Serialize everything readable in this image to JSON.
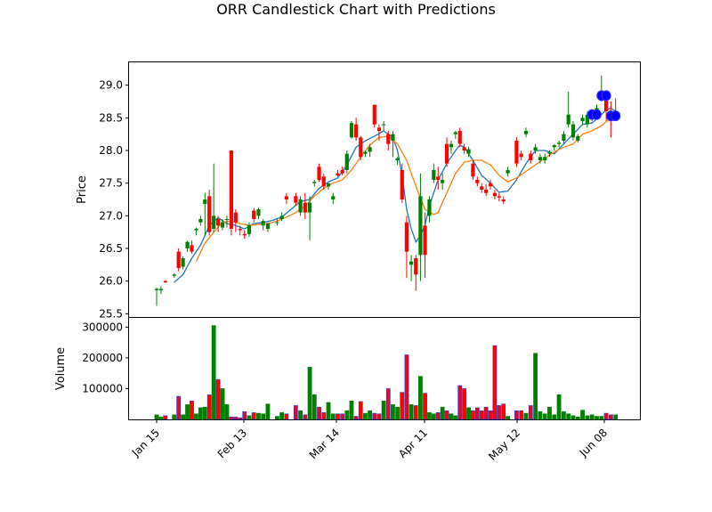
{
  "chart_data": {
    "type": "candlestick",
    "title": "ORR Candlestick Chart with Predictions",
    "price_panel": {
      "ylabel": "Price",
      "ylim": [
        25.45,
        29.35
      ],
      "yticks": [
        "25.5",
        "26.0",
        "26.5",
        "27.0",
        "27.5",
        "28.0",
        "28.5",
        "29.0"
      ]
    },
    "volume_panel": {
      "ylabel": "Volume",
      "ylim": [
        0,
        330000
      ],
      "yticks": [
        "100000",
        "200000",
        "300000"
      ]
    },
    "xticks": [
      {
        "label": "Jan 15",
        "day": 0
      },
      {
        "label": "Feb 13",
        "day": 29
      },
      {
        "label": "Mar 14",
        "day": 58
      },
      {
        "label": "Apr 11",
        "day": 86
      },
      {
        "label": "May 12",
        "day": 117
      },
      {
        "label": "Jun 08",
        "day": 144
      }
    ],
    "xlim_days": [
      -4,
      148
    ],
    "candles": [
      [
        0,
        25.86,
        25.9,
        25.62,
        25.88,
        15000
      ],
      [
        1,
        25.86,
        25.92,
        25.8,
        25.88,
        8000
      ],
      [
        2,
        26.0,
        26.02,
        25.97,
        25.98,
        12000
      ],
      [
        4,
        26.08,
        26.12,
        26.05,
        26.1,
        15000
      ],
      [
        5,
        26.45,
        26.5,
        26.15,
        26.2,
        75000
      ],
      [
        6,
        26.22,
        26.38,
        26.18,
        26.35,
        15000
      ],
      [
        7,
        26.5,
        26.62,
        26.45,
        26.6,
        48000
      ],
      [
        8,
        26.55,
        26.62,
        26.42,
        26.45,
        60000
      ],
      [
        9,
        26.78,
        26.82,
        26.7,
        26.8,
        18000
      ],
      [
        10,
        26.9,
        27.0,
        26.85,
        26.95,
        38000
      ],
      [
        11,
        27.18,
        27.35,
        26.7,
        27.25,
        40000
      ],
      [
        12,
        27.3,
        27.4,
        26.7,
        26.75,
        80000
      ],
      [
        13,
        26.8,
        27.8,
        26.75,
        27.0,
        305000
      ],
      [
        14,
        26.95,
        27.0,
        26.75,
        26.85,
        130000
      ],
      [
        15,
        26.82,
        26.95,
        26.78,
        26.9,
        100000
      ],
      [
        16,
        26.95,
        27.0,
        26.82,
        26.95,
        48000
      ],
      [
        17,
        28.0,
        28.0,
        26.7,
        26.8,
        8000
      ],
      [
        18,
        27.05,
        27.1,
        26.75,
        26.9,
        8000
      ],
      [
        19,
        26.8,
        26.85,
        26.7,
        26.78,
        5000
      ],
      [
        20,
        26.72,
        26.78,
        26.65,
        26.7,
        25000
      ],
      [
        21,
        26.72,
        26.9,
        26.68,
        26.86,
        12000
      ],
      [
        22,
        27.08,
        27.12,
        26.9,
        26.95,
        22000
      ],
      [
        23,
        27.0,
        27.12,
        26.95,
        27.1,
        20000
      ],
      [
        24,
        26.85,
        26.95,
        26.78,
        26.92,
        18000
      ],
      [
        25,
        26.8,
        26.9,
        26.75,
        26.88,
        50000
      ],
      [
        27,
        26.9,
        26.95,
        26.85,
        26.9,
        10000
      ],
      [
        28,
        26.95,
        27.05,
        26.92,
        27.0,
        22000
      ],
      [
        29,
        27.3,
        27.35,
        27.18,
        27.25,
        18000
      ],
      [
        31,
        27.3,
        27.35,
        27.15,
        27.2,
        45000
      ],
      [
        32,
        27.05,
        27.3,
        27.0,
        27.25,
        28000
      ],
      [
        33,
        27.2,
        27.35,
        26.95,
        27.05,
        15000
      ],
      [
        34,
        27.05,
        27.3,
        26.62,
        27.2,
        170000
      ],
      [
        35,
        27.5,
        27.55,
        27.45,
        27.52,
        80000
      ],
      [
        36,
        27.75,
        27.8,
        27.52,
        27.55,
        40000
      ],
      [
        37,
        27.6,
        27.65,
        27.4,
        27.45,
        22000
      ],
      [
        38,
        27.45,
        27.5,
        27.4,
        27.5,
        55000
      ],
      [
        39,
        27.25,
        27.35,
        27.18,
        27.3,
        18000
      ],
      [
        40,
        27.65,
        27.7,
        27.6,
        27.62,
        18000
      ],
      [
        41,
        27.7,
        27.75,
        27.62,
        27.65,
        18000
      ],
      [
        42,
        27.7,
        28.0,
        27.65,
        27.95,
        28000
      ],
      [
        43,
        28.2,
        28.45,
        28.18,
        28.42,
        60000
      ],
      [
        44,
        28.4,
        28.5,
        28.15,
        28.2,
        10000
      ],
      [
        45,
        28.2,
        28.22,
        27.85,
        27.9,
        58000
      ],
      [
        46,
        27.95,
        28.0,
        27.9,
        27.98,
        20000
      ],
      [
        47,
        27.98,
        28.1,
        27.9,
        28.05,
        28000
      ],
      [
        48,
        28.7,
        28.7,
        28.35,
        28.4,
        20000
      ],
      [
        49,
        28.35,
        28.4,
        28.15,
        28.3,
        18000
      ],
      [
        50,
        28.4,
        28.45,
        28.3,
        28.4,
        60000
      ],
      [
        51,
        28.25,
        28.3,
        28.0,
        28.1,
        100000
      ],
      [
        52,
        28.15,
        28.3,
        27.9,
        28.25,
        48000
      ],
      [
        53,
        27.85,
        27.9,
        27.78,
        27.88,
        40000
      ],
      [
        54,
        27.7,
        27.8,
        27.2,
        27.25,
        88000
      ],
      [
        55,
        26.9,
        27.0,
        26.05,
        26.45,
        210000
      ],
      [
        56,
        26.25,
        26.4,
        26.0,
        26.3,
        48000
      ],
      [
        57,
        26.35,
        26.4,
        25.85,
        26.1,
        45000
      ],
      [
        58,
        26.4,
        27.65,
        26.0,
        27.3,
        140000
      ],
      [
        59,
        26.85,
        27.05,
        26.05,
        26.4,
        85000
      ],
      [
        60,
        27.0,
        27.3,
        26.9,
        27.25,
        22000
      ],
      [
        61,
        27.55,
        27.8,
        27.5,
        27.7,
        18000
      ],
      [
        62,
        27.6,
        27.75,
        27.4,
        27.55,
        22000
      ],
      [
        63,
        27.5,
        27.65,
        27.4,
        27.55,
        40000
      ],
      [
        64,
        28.1,
        28.2,
        27.75,
        27.8,
        28000
      ],
      [
        65,
        28.05,
        28.15,
        27.95,
        28.1,
        18000
      ],
      [
        66,
        28.25,
        28.3,
        28.18,
        28.28,
        12000
      ],
      [
        67,
        28.3,
        28.35,
        28.05,
        28.1,
        110000
      ],
      [
        68,
        28.05,
        28.1,
        27.95,
        28.0,
        100000
      ],
      [
        69,
        27.95,
        28.05,
        27.9,
        28.02,
        38000
      ],
      [
        70,
        27.8,
        27.85,
        27.55,
        27.6,
        28000
      ],
      [
        71,
        27.55,
        27.6,
        27.45,
        27.5,
        38000
      ],
      [
        72,
        27.45,
        27.5,
        27.35,
        27.4,
        28000
      ],
      [
        73,
        27.4,
        27.48,
        27.3,
        27.35,
        40000
      ],
      [
        74,
        27.5,
        27.55,
        27.4,
        27.45,
        28000
      ],
      [
        75,
        27.35,
        27.4,
        27.25,
        27.3,
        240000
      ],
      [
        76,
        27.3,
        27.35,
        27.22,
        27.28,
        45000
      ],
      [
        77,
        27.25,
        27.3,
        27.18,
        27.22,
        50000
      ],
      [
        78,
        27.65,
        27.75,
        27.6,
        27.7,
        10000
      ],
      [
        80,
        28.15,
        28.2,
        27.75,
        27.8,
        28000
      ],
      [
        81,
        27.95,
        28.0,
        27.85,
        27.9,
        28000
      ],
      [
        82,
        28.25,
        28.35,
        28.2,
        28.3,
        20000
      ],
      [
        83,
        27.95,
        28.0,
        27.8,
        27.85,
        45000
      ],
      [
        84,
        28.0,
        28.1,
        27.95,
        28.05,
        215000
      ],
      [
        85,
        27.85,
        27.95,
        27.8,
        27.9,
        25000
      ],
      [
        86,
        27.85,
        27.95,
        27.8,
        27.9,
        18000
      ],
      [
        87,
        27.95,
        28.0,
        27.9,
        27.98,
        40000
      ],
      [
        88,
        28.05,
        28.1,
        28.0,
        28.08,
        15000
      ],
      [
        89,
        28.1,
        28.15,
        28.05,
        28.12,
        80000
      ],
      [
        90,
        28.15,
        28.3,
        28.1,
        28.25,
        25000
      ],
      [
        91,
        28.4,
        28.9,
        28.35,
        28.55,
        18000
      ],
      [
        92,
        28.2,
        28.45,
        28.15,
        28.4,
        12000
      ],
      [
        93,
        28.15,
        28.25,
        28.12,
        28.22,
        8000
      ],
      [
        94,
        28.45,
        28.55,
        28.4,
        28.5,
        30000
      ],
      [
        95,
        28.4,
        28.6,
        28.35,
        28.55,
        12000
      ],
      [
        96,
        28.5,
        28.55,
        28.45,
        28.52,
        15000
      ],
      [
        97,
        28.6,
        28.7,
        28.55,
        28.65,
        10000
      ],
      [
        98,
        28.8,
        29.15,
        28.75,
        28.9,
        10000
      ],
      [
        99,
        28.85,
        28.9,
        28.45,
        28.6,
        20000
      ],
      [
        100,
        28.55,
        28.75,
        28.2,
        28.45,
        15000
      ],
      [
        101,
        28.5,
        28.8,
        28.45,
        28.55,
        15000
      ]
    ],
    "ma_series": [
      {
        "color": "#1f77b4",
        "points": [
          [
            4,
            25.98
          ],
          [
            6,
            26.1
          ],
          [
            8,
            26.35
          ],
          [
            10,
            26.55
          ],
          [
            12,
            26.85
          ],
          [
            14,
            26.97
          ],
          [
            16,
            26.88
          ],
          [
            18,
            26.85
          ],
          [
            20,
            26.8
          ],
          [
            22,
            26.88
          ],
          [
            24,
            26.9
          ],
          [
            26,
            26.93
          ],
          [
            28,
            26.98
          ],
          [
            30,
            27.1
          ],
          [
            32,
            27.22
          ],
          [
            34,
            27.25
          ],
          [
            36,
            27.42
          ],
          [
            38,
            27.52
          ],
          [
            40,
            27.58
          ],
          [
            42,
            27.78
          ],
          [
            44,
            28.05
          ],
          [
            46,
            28.15
          ],
          [
            48,
            28.22
          ],
          [
            50,
            28.3
          ],
          [
            52,
            28.2
          ],
          [
            53,
            28.0
          ],
          [
            54,
            27.62
          ],
          [
            55,
            27.1
          ],
          [
            56,
            26.8
          ],
          [
            57,
            26.6
          ],
          [
            58,
            26.7
          ],
          [
            59,
            26.85
          ],
          [
            60,
            27.15
          ],
          [
            62,
            27.55
          ],
          [
            64,
            27.8
          ],
          [
            66,
            28.0
          ],
          [
            67,
            28.08
          ],
          [
            68,
            28.05
          ],
          [
            70,
            27.85
          ],
          [
            72,
            27.62
          ],
          [
            74,
            27.5
          ],
          [
            76,
            27.36
          ],
          [
            78,
            27.38
          ],
          [
            80,
            27.55
          ],
          [
            82,
            27.8
          ],
          [
            84,
            28.0
          ],
          [
            86,
            28.0
          ],
          [
            88,
            27.95
          ],
          [
            90,
            28.1
          ],
          [
            92,
            28.25
          ],
          [
            94,
            28.4
          ],
          [
            96,
            28.42
          ],
          [
            98,
            28.55
          ],
          [
            99,
            28.62
          ],
          [
            100,
            28.65
          ],
          [
            101,
            28.6
          ]
        ]
      },
      {
        "color": "#ff7f0e",
        "points": [
          [
            9,
            26.3
          ],
          [
            11,
            26.58
          ],
          [
            13,
            26.75
          ],
          [
            15,
            26.9
          ],
          [
            17,
            26.92
          ],
          [
            19,
            26.88
          ],
          [
            21,
            26.85
          ],
          [
            23,
            26.87
          ],
          [
            25,
            26.88
          ],
          [
            27,
            26.92
          ],
          [
            29,
            26.98
          ],
          [
            31,
            27.05
          ],
          [
            33,
            27.15
          ],
          [
            35,
            27.3
          ],
          [
            37,
            27.42
          ],
          [
            39,
            27.5
          ],
          [
            41,
            27.55
          ],
          [
            43,
            27.7
          ],
          [
            45,
            27.9
          ],
          [
            47,
            28.08
          ],
          [
            49,
            28.2
          ],
          [
            51,
            28.22
          ],
          [
            53,
            28.1
          ],
          [
            55,
            27.85
          ],
          [
            57,
            27.45
          ],
          [
            59,
            27.1
          ],
          [
            61,
            27.02
          ],
          [
            62,
            27.05
          ],
          [
            64,
            27.35
          ],
          [
            66,
            27.65
          ],
          [
            68,
            27.82
          ],
          [
            70,
            27.85
          ],
          [
            72,
            27.85
          ],
          [
            74,
            27.78
          ],
          [
            76,
            27.62
          ],
          [
            78,
            27.52
          ],
          [
            80,
            27.58
          ],
          [
            82,
            27.68
          ],
          [
            84,
            27.78
          ],
          [
            86,
            27.88
          ],
          [
            88,
            27.98
          ],
          [
            90,
            28.05
          ],
          [
            92,
            28.1
          ],
          [
            94,
            28.25
          ],
          [
            96,
            28.3
          ],
          [
            98,
            28.38
          ],
          [
            100,
            28.5
          ],
          [
            101,
            28.52
          ]
        ]
      }
    ],
    "predictions": [
      [
        96,
        28.55
      ],
      [
        97,
        28.55
      ],
      [
        98,
        28.84
      ],
      [
        99,
        28.84
      ],
      [
        100,
        28.53
      ],
      [
        101,
        28.53
      ]
    ],
    "colors": {
      "up": "#008000",
      "down": "#ff0000",
      "down_edge": "#1f3ff0",
      "prediction_fill": "#0000ff"
    }
  }
}
